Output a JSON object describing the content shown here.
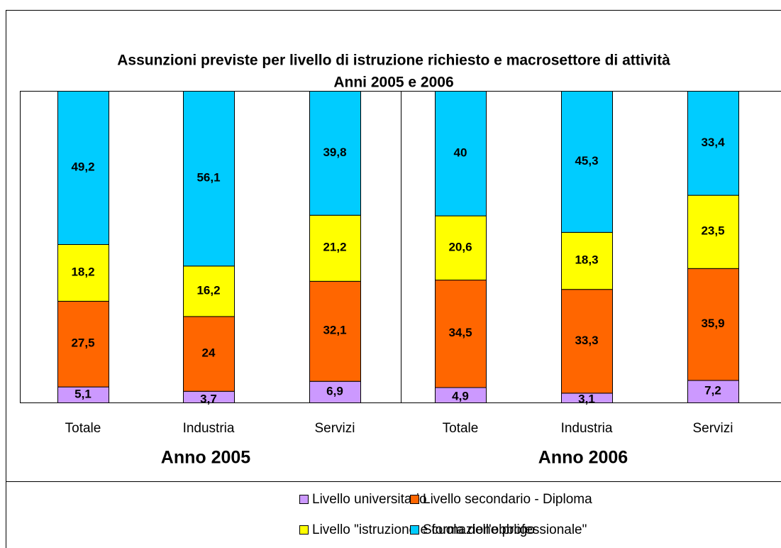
{
  "chart_data": {
    "type": "bar",
    "stacked": true,
    "title": "Assunzioni previste per livello di istruzione richiesto e macrosettore di attività",
    "subtitle": "Anni 2005 e 2006",
    "categories": [
      "Totale",
      "Industria",
      "Servizi",
      "Totale",
      "Industria",
      "Servizi"
    ],
    "group_labels": [
      "Anno 2005",
      "Anno 2006"
    ],
    "ylim": [
      0,
      100
    ],
    "series": [
      {
        "name": "Livello universitario",
        "color": "#cc99ff",
        "values": [
          5.1,
          3.7,
          6.9,
          4.9,
          3.1,
          7.2
        ],
        "value_labels": [
          "5,1",
          "3,7",
          "6,9",
          "4,9",
          "3,1",
          "7,2"
        ]
      },
      {
        "name": "Livello secondario - Diploma",
        "color": "#ff6600",
        "values": [
          27.5,
          24,
          32.1,
          34.5,
          33.3,
          35.9
        ],
        "value_labels": [
          "27,5",
          "24",
          "32,1",
          "34,5",
          "33,3",
          "35,9"
        ]
      },
      {
        "name": "Livello \"istruzione e formazione professionale\"",
        "color": "#ffff00",
        "values": [
          18.2,
          16.2,
          21.2,
          20.6,
          18.3,
          23.5
        ],
        "value_labels": [
          "18,2",
          "16,2",
          "21,2",
          "20,6",
          "18,3",
          "23,5"
        ]
      },
      {
        "name": "Scuola dell'obbligo",
        "color": "#00ccff",
        "values": [
          49.2,
          56.1,
          39.8,
          40,
          45.3,
          33.4
        ],
        "value_labels": [
          "49,2",
          "56,1",
          "39,8",
          "40",
          "45,3",
          "33,4"
        ]
      }
    ]
  }
}
